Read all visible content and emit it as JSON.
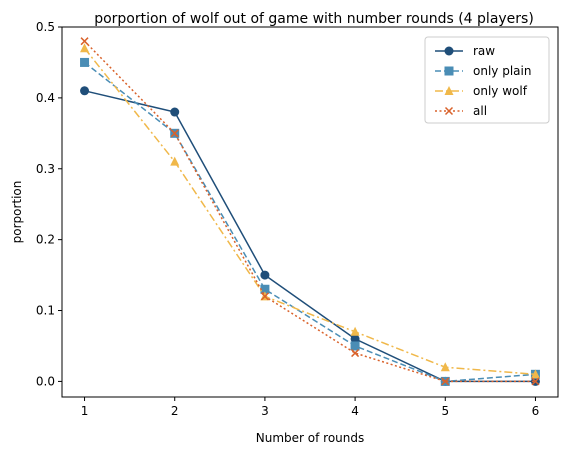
{
  "chart_data": {
    "type": "line",
    "title": "porportion of wolf out of game with number rounds (4 players)",
    "xlabel": "Number of rounds",
    "ylabel": "porportion",
    "x": [
      1,
      2,
      3,
      4,
      5,
      6
    ],
    "xlim": [
      0.75,
      6.25
    ],
    "ylim": [
      -0.022,
      0.5
    ],
    "xticks": [
      "1",
      "2",
      "3",
      "4",
      "5",
      "6"
    ],
    "yticks": [
      "0.0",
      "0.1",
      "0.2",
      "0.3",
      "0.4",
      "0.5"
    ],
    "grid": false,
    "legend_position": "top-right",
    "series": [
      {
        "name": "raw",
        "values": [
          0.41,
          0.38,
          0.15,
          0.06,
          0.0,
          0.0
        ],
        "color": "#1f4e79",
        "marker": "circle",
        "dash": "solid"
      },
      {
        "name": "only plain",
        "values": [
          0.45,
          0.35,
          0.13,
          0.05,
          0.0,
          0.01
        ],
        "color": "#4a8db5",
        "marker": "square",
        "dash": "dashed"
      },
      {
        "name": "only wolf",
        "values": [
          0.47,
          0.31,
          0.12,
          0.07,
          0.02,
          0.01
        ],
        "color": "#f0b84a",
        "marker": "triangle",
        "dash": "dashdot"
      },
      {
        "name": "all",
        "values": [
          0.48,
          0.35,
          0.12,
          0.04,
          0.0,
          0.0
        ],
        "color": "#d9622b",
        "marker": "x",
        "dash": "dotted"
      }
    ]
  }
}
